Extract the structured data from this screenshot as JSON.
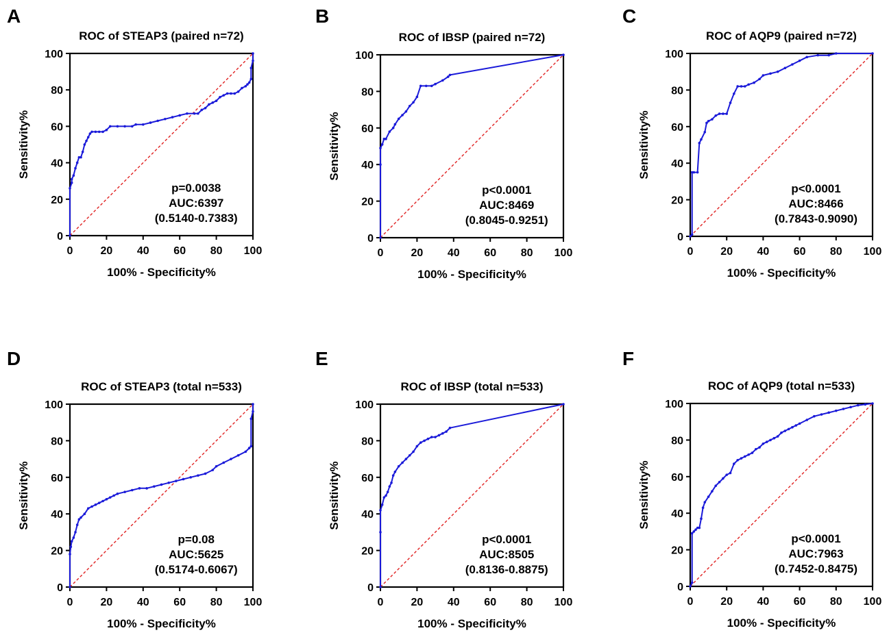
{
  "chart_data": [
    {
      "panel": "A",
      "type": "line",
      "title": "ROC of STEAP3 (paired n=72)",
      "xlabel": "100% - Specificity%",
      "ylabel": "Sensitivity%",
      "xlim": [
        0,
        100
      ],
      "ylim": [
        0,
        100
      ],
      "xticks": [
        "0",
        "20",
        "40",
        "60",
        "80",
        "100"
      ],
      "yticks": [
        "0",
        "20",
        "40",
        "60",
        "80",
        "100"
      ],
      "annotations": [
        "p=0.0038",
        "AUC:6397",
        "(0.5140-0.7383)"
      ],
      "series": [
        {
          "color": "#1a1ad9",
          "x": [
            0,
            0,
            1,
            1,
            2,
            3,
            4,
            5,
            6,
            7,
            8,
            9,
            10,
            11,
            12,
            14,
            16,
            18,
            20,
            22,
            26,
            30,
            34,
            36,
            40,
            44,
            48,
            52,
            56,
            60,
            64,
            68,
            70,
            72,
            74,
            76,
            78,
            80,
            82,
            84,
            86,
            88,
            90,
            92,
            94,
            96,
            97,
            98,
            99,
            99,
            100,
            100
          ],
          "y": [
            0,
            26,
            29,
            31,
            33,
            37,
            40,
            43,
            43,
            46,
            50,
            52,
            54,
            56,
            57,
            57,
            57,
            57,
            58,
            60,
            60,
            60,
            60,
            61,
            61,
            62,
            63,
            64,
            65,
            66,
            67,
            67,
            67,
            69,
            70,
            72,
            73,
            74,
            76,
            77,
            78,
            78,
            78,
            79,
            81,
            82,
            83,
            84,
            86,
            92,
            96,
            100
          ]
        }
      ]
    },
    {
      "panel": "B",
      "type": "line",
      "title": "ROC of IBSP (paired n=72)",
      "xlabel": "100% - Specificity%",
      "ylabel": "Sensitivity%",
      "xlim": [
        0,
        100
      ],
      "ylim": [
        0,
        100
      ],
      "xticks": [
        "0",
        "20",
        "40",
        "60",
        "80",
        "100"
      ],
      "yticks": [
        "0",
        "20",
        "40",
        "60",
        "80",
        "100"
      ],
      "annotations": [
        "p<0.0001",
        "AUC:8469",
        "(0.8045-0.9251)"
      ],
      "series": [
        {
          "color": "#1a1ad9",
          "x": [
            0,
            0,
            0,
            1,
            2,
            3,
            5,
            7,
            8,
            10,
            12,
            14,
            16,
            18,
            20,
            22,
            25,
            28,
            30,
            34,
            37,
            38,
            100
          ],
          "y": [
            0,
            40,
            49,
            51,
            54,
            54,
            58,
            60,
            62,
            65,
            67,
            69,
            72,
            74,
            77,
            83,
            83,
            83,
            84,
            86,
            88,
            89,
            100
          ]
        }
      ]
    },
    {
      "panel": "C",
      "type": "line",
      "title": "ROC of AQP9 (paired n=72)",
      "xlabel": "100% - Specificity%",
      "ylabel": "Sensitivity%",
      "xlim": [
        0,
        100
      ],
      "ylim": [
        0,
        100
      ],
      "xticks": [
        "0",
        "20",
        "40",
        "60",
        "80",
        "100"
      ],
      "yticks": [
        "0",
        "20",
        "40",
        "60",
        "80",
        "100"
      ],
      "annotations": [
        "p<0.0001",
        "AUC:8466",
        "(0.7843-0.9090)"
      ],
      "series": [
        {
          "color": "#1a1ad9",
          "x": [
            0,
            1,
            1,
            2,
            4,
            5,
            6,
            8,
            9,
            10,
            12,
            14,
            16,
            18,
            20,
            22,
            24,
            26,
            28,
            30,
            32,
            35,
            38,
            40,
            44,
            48,
            52,
            56,
            60,
            64,
            70,
            76,
            80,
            100
          ],
          "y": [
            0,
            1,
            35,
            35,
            35,
            51,
            53,
            57,
            62,
            63,
            64,
            66,
            67,
            67,
            67,
            73,
            78,
            82,
            82,
            82,
            83,
            84,
            86,
            88,
            89,
            90,
            92,
            94,
            96,
            98,
            99,
            99,
            100,
            100
          ]
        }
      ]
    },
    {
      "panel": "D",
      "type": "line",
      "title": "ROC of STEAP3 (total n=533)",
      "xlabel": "100% - Specificity%",
      "ylabel": "Sensitivity%",
      "xlim": [
        0,
        100
      ],
      "ylim": [
        0,
        100
      ],
      "xticks": [
        "0",
        "20",
        "40",
        "60",
        "80",
        "100"
      ],
      "yticks": [
        "0",
        "20",
        "40",
        "60",
        "80",
        "100"
      ],
      "annotations": [
        "p=0.08",
        "AUC:5625",
        "(0.5174-0.6067)"
      ],
      "series": [
        {
          "color": "#1a1ad9",
          "x": [
            0,
            0,
            0.5,
            1,
            2,
            3,
            4,
            5,
            6,
            8,
            10,
            12,
            14,
            16,
            18,
            20,
            22,
            24,
            26,
            30,
            34,
            38,
            42,
            46,
            50,
            54,
            58,
            62,
            66,
            70,
            74,
            78,
            80,
            84,
            88,
            92,
            96,
            98,
            99,
            99,
            100,
            100
          ],
          "y": [
            0,
            18,
            22,
            25,
            27,
            30,
            34,
            37,
            38,
            40,
            43,
            44,
            45,
            46,
            47,
            48,
            49,
            50,
            51,
            52,
            53,
            54,
            54,
            55,
            56,
            57,
            58,
            59,
            60,
            61,
            62,
            64,
            66,
            68,
            70,
            72,
            74,
            76,
            77,
            92,
            96,
            100
          ]
        }
      ]
    },
    {
      "panel": "E",
      "type": "line",
      "title": "ROC of IBSP (total n=533)",
      "xlabel": "100% - Specificity%",
      "ylabel": "Sensitivity%",
      "xlim": [
        0,
        100
      ],
      "ylim": [
        0,
        100
      ],
      "xticks": [
        "0",
        "20",
        "40",
        "60",
        "80",
        "100"
      ],
      "yticks": [
        "0",
        "20",
        "40",
        "60",
        "80",
        "100"
      ],
      "annotations": [
        "p<0.0001",
        "AUC:8505",
        "(0.8136-0.8875)"
      ],
      "series": [
        {
          "color": "#1a1ad9",
          "x": [
            0,
            0,
            0,
            1,
            2,
            3,
            4,
            5,
            6,
            7,
            8,
            10,
            12,
            14,
            16,
            18,
            20,
            22,
            24,
            26,
            28,
            30,
            32,
            34,
            36,
            38,
            100
          ],
          "y": [
            0,
            30,
            42,
            45,
            49,
            50,
            52,
            55,
            57,
            61,
            63,
            66,
            68,
            70,
            72,
            74,
            77,
            79,
            80,
            81,
            82,
            82,
            83,
            84,
            85,
            87,
            100
          ]
        }
      ]
    },
    {
      "panel": "F",
      "type": "line",
      "title": "ROC of AQP9 (total n=533)",
      "xlabel": "100% - Specificity%",
      "ylabel": "Sensitivity%",
      "xlim": [
        0,
        100
      ],
      "ylim": [
        0,
        100
      ],
      "xticks": [
        "0",
        "20",
        "40",
        "60",
        "80",
        "100"
      ],
      "yticks": [
        "0",
        "20",
        "40",
        "60",
        "80",
        "100"
      ],
      "annotations": [
        "p<0.0001",
        "AUC:7963",
        "(0.7452-0.8475)"
      ],
      "series": [
        {
          "color": "#1a1ad9",
          "x": [
            0,
            1,
            1,
            2,
            3,
            4,
            5,
            6,
            7,
            8,
            10,
            12,
            14,
            16,
            18,
            20,
            22,
            24,
            26,
            28,
            30,
            32,
            34,
            36,
            38,
            40,
            42,
            44,
            46,
            48,
            50,
            52,
            54,
            56,
            58,
            60,
            64,
            68,
            72,
            76,
            80,
            84,
            88,
            92,
            96,
            100
          ],
          "y": [
            0,
            2,
            29,
            30,
            31,
            32,
            32,
            37,
            43,
            46,
            49,
            52,
            55,
            57,
            59,
            61,
            62,
            67,
            69,
            70,
            71,
            72,
            73,
            75,
            76,
            78,
            79,
            80,
            81,
            82,
            84,
            85,
            86,
            87,
            88,
            89,
            91,
            93,
            94,
            95,
            96,
            97,
            98,
            99,
            99.5,
            100
          ]
        }
      ]
    }
  ]
}
